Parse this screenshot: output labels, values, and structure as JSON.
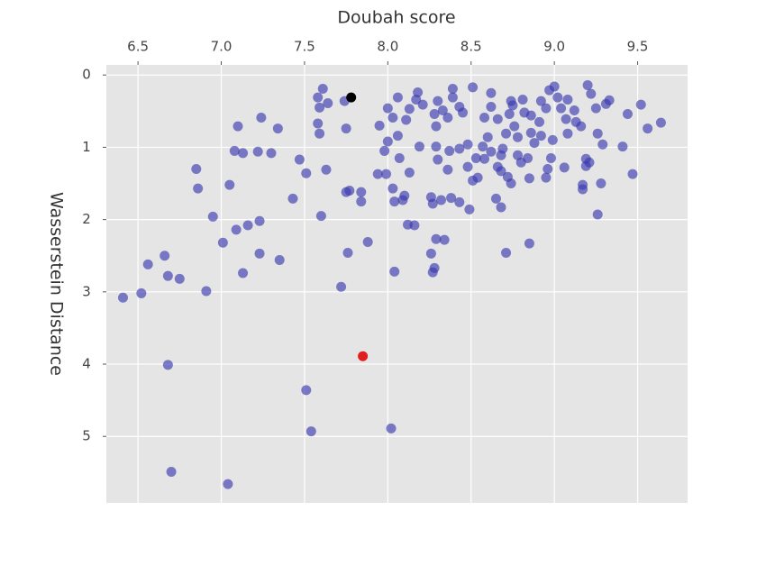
{
  "chart_data": {
    "type": "scatter",
    "xlabel": "Doubah score",
    "ylabel": "Wasserstein Distance",
    "xlim": [
      6.31,
      9.8
    ],
    "ylim": [
      -0.14,
      5.92
    ],
    "y_inverted": true,
    "x_axis_position": "top",
    "xticks": [
      6.5,
      {
        "value": 7,
        "label": "7.0"
      },
      7.5,
      {
        "value": 8,
        "label": "8.0"
      },
      8.5,
      {
        "value": 9,
        "label": "9.0"
      },
      9.5
    ],
    "yticks": [
      0,
      1,
      2,
      3,
      4,
      5
    ],
    "grid": true,
    "background": "#e5e5e5",
    "series": [
      {
        "color": "#3a3ab0",
        "opacity": 0.65,
        "x": [
          6.41,
          6.52,
          6.56,
          6.66,
          6.68,
          6.75,
          6.91,
          6.68,
          6.7,
          7.04,
          7.51,
          7.54,
          8.02,
          6.85,
          6.86,
          6.95,
          7.01,
          7.09,
          7.13,
          7.16,
          7.23,
          7.23,
          7.35,
          7.05,
          7.08,
          7.1,
          7.13,
          7.22,
          7.24,
          7.3,
          7.34,
          7.43,
          7.47,
          7.51,
          7.6,
          7.63,
          7.58,
          7.59,
          7.58,
          7.61,
          7.59,
          7.64,
          7.74,
          7.75,
          7.72,
          7.76,
          7.75,
          7.77,
          7.84,
          7.84,
          7.88,
          7.95,
          7.98,
          8.0,
          8.0,
          8.03,
          8.06,
          8.06,
          8.07,
          8.11,
          8.13,
          7.94,
          7.99,
          8.03,
          8.04,
          8.09,
          8.1,
          8.12,
          8.16,
          8.13,
          8.19,
          8.04,
          8.27,
          8.26,
          8.27,
          8.28,
          8.26,
          8.29,
          8.34,
          8.32,
          8.38,
          8.43,
          8.49,
          8.29,
          8.3,
          8.28,
          8.3,
          8.33,
          8.36,
          8.39,
          8.39,
          8.43,
          8.45,
          8.48,
          8.43,
          8.37,
          8.17,
          8.18,
          8.51,
          8.51,
          8.54,
          8.53,
          8.58,
          8.57,
          8.62,
          8.62,
          8.65,
          8.68,
          8.71,
          8.66,
          8.68,
          8.69,
          8.71,
          8.73,
          8.75,
          8.76,
          8.78,
          8.8,
          8.72,
          8.74,
          8.84,
          8.86,
          8.88,
          8.91,
          8.92,
          8.95,
          8.97,
          8.85,
          8.85,
          8.96,
          8.95,
          8.98,
          8.99,
          9.0,
          9.02,
          9.04,
          9.07,
          9.08,
          9.06,
          9.12,
          9.13,
          9.16,
          9.17,
          9.17,
          9.19,
          9.2,
          9.22,
          9.19,
          9.21,
          9.25,
          9.26,
          9.28,
          9.26,
          9.29,
          9.31,
          9.33,
          9.41,
          9.44,
          9.47,
          9.52,
          9.56,
          9.64,
          8.6,
          8.66,
          8.74,
          8.81,
          8.86,
          8.92,
          8.78,
          8.68,
          8.58,
          8.48,
          8.62,
          8.82,
          9.08,
          8.36,
          8.21,
          8.29
        ],
        "y": [
          3.08,
          3.02,
          2.62,
          2.5,
          2.78,
          2.82,
          2.99,
          4.01,
          5.49,
          5.66,
          4.36,
          4.93,
          4.89,
          1.3,
          1.57,
          1.96,
          2.32,
          2.14,
          2.74,
          2.08,
          2.02,
          2.47,
          2.56,
          1.52,
          1.05,
          0.71,
          1.08,
          1.06,
          0.59,
          1.08,
          0.74,
          1.71,
          1.17,
          1.36,
          1.95,
          1.31,
          0.67,
          0.81,
          0.31,
          0.19,
          0.45,
          0.39,
          0.36,
          0.74,
          2.93,
          2.46,
          1.62,
          1.6,
          1.62,
          1.75,
          2.31,
          0.7,
          1.05,
          0.46,
          0.92,
          0.59,
          0.31,
          0.84,
          1.15,
          0.62,
          0.47,
          1.37,
          1.37,
          1.57,
          1.75,
          1.73,
          1.67,
          2.07,
          2.08,
          1.35,
          0.99,
          2.72,
          1.78,
          1.69,
          2.73,
          2.67,
          2.47,
          2.27,
          2.28,
          1.73,
          1.7,
          1.76,
          1.86,
          0.99,
          1.17,
          0.54,
          0.36,
          0.49,
          0.59,
          0.19,
          0.31,
          0.44,
          0.52,
          0.96,
          1.02,
          1.05,
          0.34,
          0.24,
          0.17,
          1.46,
          1.42,
          1.15,
          0.59,
          0.99,
          1.06,
          0.25,
          1.71,
          1.83,
          2.46,
          1.27,
          1.33,
          1.02,
          0.81,
          0.54,
          0.42,
          0.71,
          1.11,
          1.21,
          1.41,
          1.5,
          1.15,
          0.8,
          0.94,
          0.65,
          0.36,
          0.46,
          0.21,
          2.33,
          1.43,
          1.3,
          1.42,
          1.15,
          0.9,
          0.16,
          0.31,
          0.46,
          0.61,
          0.81,
          1.28,
          0.49,
          0.65,
          0.71,
          1.52,
          1.58,
          1.16,
          0.14,
          0.26,
          1.26,
          1.21,
          0.46,
          0.81,
          1.5,
          1.93,
          0.96,
          0.4,
          0.35,
          0.99,
          0.54,
          1.37,
          0.41,
          0.74,
          0.66,
          0.86,
          0.61,
          0.36,
          0.34,
          0.56,
          0.84,
          0.86,
          1.11,
          1.16,
          1.27,
          0.44,
          0.52,
          0.34,
          1.31,
          0.41,
          0.71
        ]
      },
      {
        "color": "#000000",
        "opacity": 1,
        "x": [
          7.78
        ],
        "y": [
          0.31
        ]
      },
      {
        "color": "#e02020",
        "opacity": 1,
        "x": [
          7.85
        ],
        "y": [
          3.89
        ]
      }
    ]
  }
}
